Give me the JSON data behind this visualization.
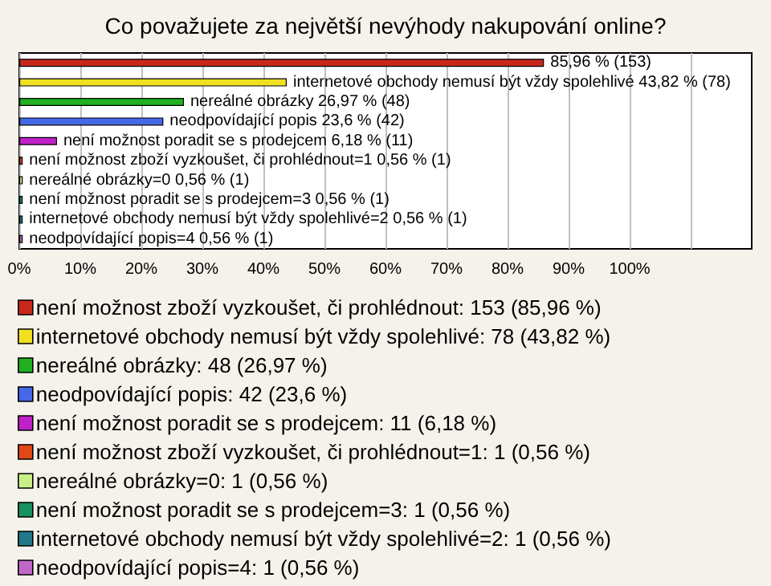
{
  "chart_data": {
    "type": "bar",
    "title": "Co považujete za největší nevýhody nakupování online?",
    "orientation": "horizontal",
    "categories": [
      null,
      null,
      null,
      null,
      null,
      null,
      null,
      null,
      null,
      null
    ],
    "xlim": [
      0,
      120
    ],
    "xticks": [
      {
        "value": 0,
        "label": "0%"
      },
      {
        "value": 10,
        "label": "10%"
      },
      {
        "value": 20,
        "label": "20%"
      },
      {
        "value": 30,
        "label": "30%"
      },
      {
        "value": 40,
        "label": "40%"
      },
      {
        "value": 50,
        "label": "50%"
      },
      {
        "value": 60,
        "label": "60%"
      },
      {
        "value": 70,
        "label": "70%"
      },
      {
        "value": 80,
        "label": "80%"
      },
      {
        "value": 90,
        "label": "90%"
      },
      {
        "value": 100,
        "label": "100%"
      },
      {
        "value": 110,
        "label": null
      }
    ],
    "grid": "x",
    "legend": "bottom",
    "series": [
      {
        "name": "není možnost zboží vyzkoušet, či prohlédnout: 153 (85,96 %)",
        "color": "#c8281c",
        "values": [
          85.96,
          null,
          null,
          null,
          null,
          null,
          null,
          null,
          null,
          null
        ],
        "value_labels": [
          "85,96 % (153)",
          null,
          null,
          null,
          null,
          null,
          null,
          null,
          null,
          null
        ]
      },
      {
        "name": "internetové obchody nemusí být vždy spolehlivé: 78 (43,82 %)",
        "color": "#f0e020",
        "values": [
          null,
          43.82,
          null,
          null,
          null,
          null,
          null,
          null,
          null,
          null
        ],
        "value_labels": [
          null,
          "internetové obchody nemusí být vždy spolehlivé 43,82 % (78)",
          null,
          null,
          null,
          null,
          null,
          null,
          null,
          null
        ]
      },
      {
        "name": "nereálné obrázky: 48 (26,97 %)",
        "color": "#20b020",
        "values": [
          null,
          null,
          26.97,
          null,
          null,
          null,
          null,
          null,
          null,
          null
        ],
        "value_labels": [
          null,
          null,
          "nereálné obrázky 26,97 % (48)",
          null,
          null,
          null,
          null,
          null,
          null,
          null
        ]
      },
      {
        "name": "neodpovídající popis: 42 (23,6 %)",
        "color": "#4468e8",
        "values": [
          null,
          null,
          null,
          23.6,
          null,
          null,
          null,
          null,
          null,
          null
        ],
        "value_labels": [
          null,
          null,
          null,
          "neodpovídající popis 23,6 % (42)",
          null,
          null,
          null,
          null,
          null,
          null
        ]
      },
      {
        "name": "není možnost poradit se s prodejcem: 11 (6,18 %)",
        "color": "#c020c8",
        "values": [
          null,
          null,
          null,
          null,
          6.18,
          null,
          null,
          null,
          null,
          null
        ],
        "value_labels": [
          null,
          null,
          null,
          null,
          "není možnost poradit se s prodejcem 6,18 % (11)",
          null,
          null,
          null,
          null,
          null
        ]
      },
      {
        "name": "není možnost zboží vyzkoušet, či prohlédnout=1: 1 (0,56 %)",
        "color": "#e04818",
        "values": [
          null,
          null,
          null,
          null,
          null,
          0.56,
          null,
          null,
          null,
          null
        ],
        "value_labels": [
          null,
          null,
          null,
          null,
          null,
          "není možnost zboží vyzkoušet, či prohlédnout=1 0,56 % (1)",
          null,
          null,
          null,
          null
        ]
      },
      {
        "name": "nereálné obrázky=0: 1 (0,56 %)",
        "color": "#c8f088",
        "values": [
          null,
          null,
          null,
          null,
          null,
          null,
          0.56,
          null,
          null,
          null
        ],
        "value_labels": [
          null,
          null,
          null,
          null,
          null,
          null,
          "nereálné obrázky=0 0,56 % (1)",
          null,
          null,
          null
        ]
      },
      {
        "name": "není možnost poradit se s prodejcem=3: 1 (0,56 %)",
        "color": "#189060",
        "values": [
          null,
          null,
          null,
          null,
          null,
          null,
          null,
          0.56,
          null,
          null
        ],
        "value_labels": [
          null,
          null,
          null,
          null,
          null,
          null,
          null,
          "není možnost poradit se s prodejcem=3 0,56 % (1)",
          null,
          null
        ]
      },
      {
        "name": "internetové obchody nemusí být vždy spolehlivé=2: 1 (0,56 %)",
        "color": "#207888",
        "values": [
          null,
          null,
          null,
          null,
          null,
          null,
          null,
          null,
          0.56,
          null
        ],
        "value_labels": [
          null,
          null,
          null,
          null,
          null,
          null,
          null,
          null,
          "internetové obchody nemusí být vždy spolehlivé=2 0,56 % (1)",
          null
        ]
      },
      {
        "name": "neodpovídající popis=4: 1 (0,56 %)",
        "color": "#c068c8",
        "values": [
          null,
          null,
          null,
          null,
          null,
          null,
          null,
          null,
          null,
          0.56
        ],
        "value_labels": [
          null,
          null,
          null,
          null,
          null,
          null,
          null,
          null,
          null,
          "neodpovídající popis=4 0,56 % (1)"
        ]
      }
    ]
  }
}
